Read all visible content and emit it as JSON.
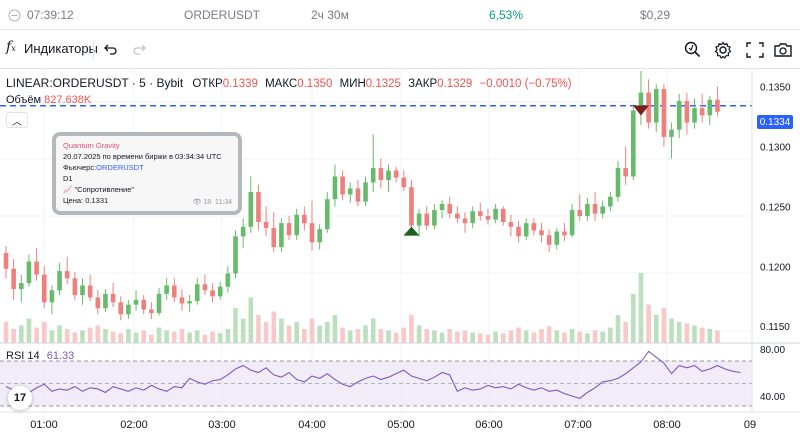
{
  "topbar": {
    "time": "07:39:12",
    "symbol": "ORDERUSDT",
    "duration": "2ч 30м",
    "percent": "6,53%",
    "amount": "$0,29"
  },
  "toolbar": {
    "indicators_label": "Индикаторы"
  },
  "legend": {
    "symbol": "LINEAR:ORDERUSDT · 5 · Bybit",
    "open_label": "ОТКР",
    "open_value": "0.1339",
    "high_label": "МАКС",
    "high_value": "0.1350",
    "low_label": "МИН",
    "low_value": "0.1325",
    "close_label": "ЗАКР",
    "close_value": "0.1329",
    "change": "−0.0010 (−0.75%)",
    "volume_label": "Объём",
    "volume_value": "827.638K"
  },
  "note": {
    "author": "Quantum Gravity",
    "date_line": "20.07.2025 по времени биржи в 03:34:34 UTC",
    "futures_label": "Фьючерс:",
    "futures_ticker": "ORDERUSDT",
    "timeframe": "D1",
    "title": "\"Сопротивление\"",
    "price_label": "Цена:",
    "price_value": "0.1331",
    "views": "18",
    "time": "11:34"
  },
  "rsi": {
    "label": "RSI 14",
    "value": "61.33"
  },
  "colors": {
    "up": "#26a69a",
    "down": "#ef5350",
    "accent": "#2962ff",
    "rsi": "#7e57c2",
    "positive_text": "#089981"
  },
  "chart_data": {
    "type": "candlestick",
    "current_price": "0.1334",
    "price_axis": [
      "0.1350",
      "0.1300",
      "0.1250",
      "0.1200",
      "0.1150"
    ],
    "ylim": [
      0.1136,
      0.1363
    ],
    "time_axis": [
      "01:00",
      "02:00",
      "03:00",
      "04:00",
      "05:00",
      "06:00",
      "07:00",
      "08:00",
      "09"
    ],
    "rsi_axis": [
      "80.00",
      "40.00"
    ],
    "rsi_levels": [
      70,
      50,
      30
    ],
    "rsi_values": [
      48,
      45,
      46,
      43,
      47,
      50,
      44,
      46,
      45,
      48,
      44,
      47,
      46,
      43,
      48,
      46,
      44,
      47,
      45,
      49,
      46,
      44,
      48,
      47,
      55,
      52,
      50,
      53,
      54,
      58,
      63,
      66,
      62,
      60,
      64,
      58,
      56,
      60,
      54,
      52,
      57,
      55,
      59,
      54,
      50,
      48,
      52,
      55,
      57,
      54,
      56,
      59,
      62,
      57,
      55,
      53,
      56,
      60,
      58,
      44,
      47,
      45,
      46,
      49,
      47,
      48,
      46,
      50,
      47,
      45,
      47,
      44,
      45,
      42,
      40,
      38,
      43,
      47,
      52,
      53,
      55,
      59,
      64,
      69,
      78,
      73,
      68,
      59,
      66,
      64,
      66,
      61,
      63,
      66,
      63,
      61,
      60
    ],
    "candles": [
      [
        0.1211,
        0.1217,
        0.119,
        0.1198
      ],
      [
        0.1198,
        0.1206,
        0.1172,
        0.1181
      ],
      [
        0.1181,
        0.1193,
        0.117,
        0.1186
      ],
      [
        0.1186,
        0.121,
        0.1183,
        0.1204
      ],
      [
        0.1204,
        0.1215,
        0.1188,
        0.1193
      ],
      [
        0.1193,
        0.12,
        0.1165,
        0.117
      ],
      [
        0.117,
        0.1184,
        0.116,
        0.118
      ],
      [
        0.118,
        0.1203,
        0.1176,
        0.1196
      ],
      [
        0.1196,
        0.1208,
        0.1185,
        0.119
      ],
      [
        0.119,
        0.1195,
        0.1172,
        0.1176
      ],
      [
        0.1176,
        0.119,
        0.1168,
        0.1184
      ],
      [
        0.1184,
        0.1193,
        0.1171,
        0.1174
      ],
      [
        0.1174,
        0.118,
        0.116,
        0.1165
      ],
      [
        0.1165,
        0.1181,
        0.1162,
        0.1177
      ],
      [
        0.1177,
        0.1186,
        0.1166,
        0.117
      ],
      [
        0.117,
        0.1175,
        0.1155,
        0.116
      ],
      [
        0.116,
        0.1172,
        0.1156,
        0.1168
      ],
      [
        0.1168,
        0.118,
        0.1163,
        0.1172
      ],
      [
        0.1172,
        0.1176,
        0.116,
        0.1164
      ],
      [
        0.1164,
        0.117,
        0.1156,
        0.1161
      ],
      [
        0.1161,
        0.1182,
        0.1159,
        0.1177
      ],
      [
        0.1177,
        0.119,
        0.1172,
        0.1184
      ],
      [
        0.1184,
        0.119,
        0.117,
        0.1174
      ],
      [
        0.1174,
        0.1181,
        0.1163,
        0.1169
      ],
      [
        0.1169,
        0.1176,
        0.1162,
        0.1171
      ],
      [
        0.1171,
        0.119,
        0.1168,
        0.1185
      ],
      [
        0.1185,
        0.1193,
        0.1176,
        0.118
      ],
      [
        0.118,
        0.1186,
        0.117,
        0.1175
      ],
      [
        0.1175,
        0.1187,
        0.1172,
        0.1183
      ],
      [
        0.1183,
        0.12,
        0.1178,
        0.1194
      ],
      [
        0.1194,
        0.123,
        0.119,
        0.1225
      ],
      [
        0.1225,
        0.124,
        0.1215,
        0.1233
      ],
      [
        0.1233,
        0.1275,
        0.1228,
        0.1262
      ],
      [
        0.1262,
        0.1268,
        0.123,
        0.1237
      ],
      [
        0.1237,
        0.125,
        0.1225,
        0.1232
      ],
      [
        0.1232,
        0.1245,
        0.1212,
        0.1216
      ],
      [
        0.1216,
        0.124,
        0.1212,
        0.1236
      ],
      [
        0.1236,
        0.1242,
        0.1222,
        0.1226
      ],
      [
        0.1226,
        0.1248,
        0.1222,
        0.1243
      ],
      [
        0.1243,
        0.125,
        0.123,
        0.1236
      ],
      [
        0.1236,
        0.1255,
        0.1213,
        0.122
      ],
      [
        0.122,
        0.1235,
        0.1214,
        0.1231
      ],
      [
        0.1231,
        0.1262,
        0.1228,
        0.1256
      ],
      [
        0.1256,
        0.1285,
        0.125,
        0.1275
      ],
      [
        0.1275,
        0.128,
        0.1255,
        0.126
      ],
      [
        0.126,
        0.127,
        0.1253,
        0.1265
      ],
      [
        0.1265,
        0.1272,
        0.125,
        0.1254
      ],
      [
        0.1254,
        0.1275,
        0.125,
        0.127
      ],
      [
        0.127,
        0.131,
        0.1262,
        0.1282
      ],
      [
        0.1282,
        0.129,
        0.1265,
        0.1272
      ],
      [
        0.1272,
        0.1285,
        0.1262,
        0.128
      ],
      [
        0.128,
        0.1283,
        0.127,
        0.1274
      ],
      [
        0.1274,
        0.128,
        0.1263,
        0.1266
      ],
      [
        0.1266,
        0.1272,
        0.1228,
        0.1234
      ],
      [
        0.1234,
        0.1248,
        0.1225,
        0.1244
      ],
      [
        0.1244,
        0.125,
        0.123,
        0.1234
      ],
      [
        0.1234,
        0.1252,
        0.1231,
        0.1247
      ],
      [
        0.1247,
        0.1255,
        0.124,
        0.1252
      ],
      [
        0.1252,
        0.1258,
        0.124,
        0.1244
      ],
      [
        0.1244,
        0.125,
        0.1236,
        0.124
      ],
      [
        0.124,
        0.1245,
        0.1228,
        0.1236
      ],
      [
        0.1236,
        0.125,
        0.1232,
        0.1246
      ],
      [
        0.1246,
        0.1253,
        0.1238,
        0.1242
      ],
      [
        0.1242,
        0.1248,
        0.1235,
        0.1239
      ],
      [
        0.1239,
        0.1252,
        0.1236,
        0.1248
      ],
      [
        0.1248,
        0.125,
        0.1234,
        0.1237
      ],
      [
        0.1237,
        0.1243,
        0.1225,
        0.1233
      ],
      [
        0.1233,
        0.1238,
        0.122,
        0.1225
      ],
      [
        0.1225,
        0.124,
        0.1222,
        0.1236
      ],
      [
        0.1236,
        0.124,
        0.1226,
        0.123
      ],
      [
        0.123,
        0.1236,
        0.122,
        0.1226
      ],
      [
        0.1226,
        0.1231,
        0.1212,
        0.1218
      ],
      [
        0.1218,
        0.1232,
        0.1214,
        0.1229
      ],
      [
        0.1229,
        0.1236,
        0.1221,
        0.1226
      ],
      [
        0.1226,
        0.1252,
        0.1224,
        0.1247
      ],
      [
        0.1247,
        0.126,
        0.1238,
        0.1242
      ],
      [
        0.1242,
        0.1257,
        0.1238,
        0.1252
      ],
      [
        0.1252,
        0.1262,
        0.1238,
        0.1244
      ],
      [
        0.1244,
        0.1255,
        0.124,
        0.125
      ],
      [
        0.125,
        0.1262,
        0.1246,
        0.1258
      ],
      [
        0.1258,
        0.1288,
        0.1254,
        0.1282
      ],
      [
        0.1282,
        0.13,
        0.1268,
        0.1275
      ],
      [
        0.1275,
        0.1335,
        0.1272,
        0.133
      ],
      [
        0.133,
        0.1378,
        0.1318,
        0.1345
      ],
      [
        0.1345,
        0.1356,
        0.1315,
        0.132
      ],
      [
        0.132,
        0.1352,
        0.1312,
        0.1348
      ],
      [
        0.1348,
        0.1352,
        0.13,
        0.1308
      ],
      [
        0.1308,
        0.132,
        0.129,
        0.1314
      ],
      [
        0.1314,
        0.1344,
        0.1307,
        0.1338
      ],
      [
        0.1338,
        0.1345,
        0.131,
        0.132
      ],
      [
        0.132,
        0.134,
        0.1315,
        0.1332
      ],
      [
        0.1332,
        0.1344,
        0.132,
        0.1326
      ],
      [
        0.1326,
        0.1342,
        0.1318,
        0.1339
      ],
      [
        0.1339,
        0.135,
        0.1325,
        0.1329
      ]
    ],
    "volumes": [
      0.3,
      0.2,
      0.25,
      0.35,
      0.22,
      0.3,
      0.18,
      0.25,
      0.2,
      0.15,
      0.18,
      0.22,
      0.25,
      0.2,
      0.16,
      0.14,
      0.2,
      0.15,
      0.18,
      0.12,
      0.22,
      0.18,
      0.16,
      0.2,
      0.15,
      0.18,
      0.12,
      0.16,
      0.14,
      0.2,
      0.5,
      0.35,
      0.65,
      0.4,
      0.3,
      0.45,
      0.35,
      0.25,
      0.3,
      0.2,
      0.35,
      0.25,
      0.3,
      0.4,
      0.22,
      0.18,
      0.2,
      0.25,
      0.35,
      0.2,
      0.18,
      0.15,
      0.22,
      0.4,
      0.25,
      0.2,
      0.18,
      0.15,
      0.2,
      0.16,
      0.18,
      0.15,
      0.14,
      0.12,
      0.16,
      0.14,
      0.18,
      0.22,
      0.18,
      0.15,
      0.2,
      0.24,
      0.18,
      0.15,
      0.2,
      0.16,
      0.14,
      0.18,
      0.16,
      0.22,
      0.4,
      0.3,
      0.7,
      1.0,
      0.55,
      0.4,
      0.5,
      0.35,
      0.3,
      0.28,
      0.25,
      0.22,
      0.2,
      0.18
    ],
    "markers": [
      {
        "type": "buy",
        "candle_index": 53,
        "price": 0.1229
      },
      {
        "type": "sell",
        "candle_index": 83,
        "price": 0.133
      }
    ]
  }
}
